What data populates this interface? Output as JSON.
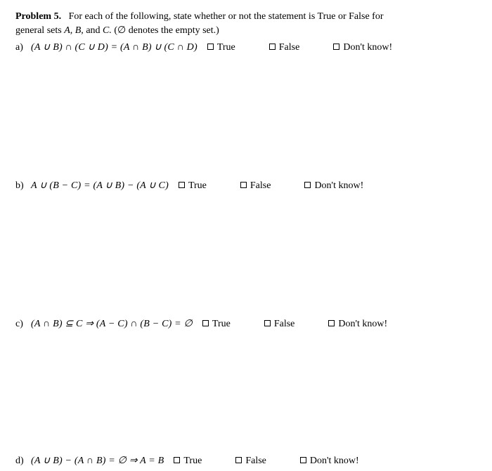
{
  "problem": {
    "title": "Problem 5.",
    "intro1": "For each of the following, state whether or not the statement is True or False for",
    "intro2_prefix": "general sets ",
    "intro2_sets": "A, B,",
    "intro2_and": " and ",
    "intro2_c": "C.",
    "intro2_paren": " (∅ denotes the empty set.)"
  },
  "questions": {
    "a": {
      "label": "a)",
      "expr": "(A ∪ B) ∩ (C ∪ D)   =   (A ∩ B) ∪ (C ∩ D)"
    },
    "b": {
      "label": "b)",
      "expr": "A ∪ (B − C) = (A ∪ B) − (A ∪ C)"
    },
    "c": {
      "label": "c)",
      "expr": "(A ∩ B) ⊆ C   ⇒   (A − C) ∩ (B − C) = ∅"
    },
    "d": {
      "label": "d)",
      "expr": "(A ∪ B) − (A ∩ B) = ∅   ⇒   A = B"
    }
  },
  "options": {
    "true": "True",
    "false": "False",
    "dontknow": "Don't know!"
  },
  "style": {
    "text_color": "#000000",
    "background_color": "#ffffff",
    "font_family": "Times New Roman",
    "base_fontsize": 14,
    "checkbox_size": 9,
    "checkbox_border": "#000000",
    "option_gap": 48,
    "question_spacing": 174
  }
}
